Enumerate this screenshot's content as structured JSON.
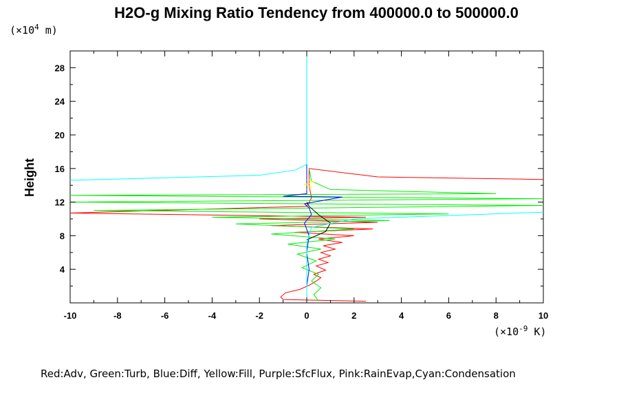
{
  "chart_data": {
    "type": "line",
    "title": "H2O-g Mixing Ratio Tendency from 400000.0 to 500000.0",
    "ylabel": "Height",
    "y_unit_prefix": "(×10",
    "y_unit_exp": "4",
    "y_unit_suffix": " m)",
    "x_unit_prefix": "(×10",
    "x_unit_exp": "-9",
    "x_unit_suffix": " K)",
    "xlim": [
      -10,
      10
    ],
    "ylim": [
      0,
      30
    ],
    "x_ticks": [
      -10,
      -8,
      -6,
      -4,
      -2,
      0,
      2,
      4,
      6,
      8,
      10
    ],
    "y_ticks": [
      4,
      8,
      12,
      16,
      20,
      24,
      28
    ],
    "legend_text": "Red:Adv, Green:Turb, Blue:Diff, Yellow:Fill, Purple:SfcFlux, Pink:RainEvap,Cyan:Condensation",
    "series": [
      {
        "color": "#ff0000",
        "points": [
          [
            2.5,
            0.2
          ],
          [
            0.5,
            0.3
          ],
          [
            -1.0,
            0.4
          ],
          [
            -1.1,
            0.7
          ],
          [
            -0.9,
            1.2
          ],
          [
            -0.3,
            1.6
          ],
          [
            0.1,
            2.1
          ],
          [
            0.4,
            2.6
          ],
          [
            0.6,
            3.0
          ],
          [
            0.3,
            3.4
          ],
          [
            0.8,
            3.9
          ],
          [
            0.4,
            4.4
          ],
          [
            0.9,
            4.8
          ],
          [
            0.5,
            5.2
          ],
          [
            1.0,
            5.6
          ],
          [
            0.6,
            6.0
          ],
          [
            1.2,
            6.4
          ],
          [
            0.7,
            6.8
          ],
          [
            1.5,
            7.2
          ],
          [
            0.5,
            7.6
          ],
          [
            2.0,
            8.0
          ],
          [
            -0.5,
            8.4
          ],
          [
            2.8,
            8.8
          ],
          [
            -1.5,
            9.2
          ],
          [
            3.0,
            9.6
          ],
          [
            -2.0,
            10.0
          ],
          [
            2.5,
            10.2
          ],
          [
            -5.0,
            10.5
          ],
          [
            -10.0,
            10.7
          ],
          [
            0,
            11.5
          ],
          [
            0.2,
            12.5
          ],
          [
            0.1,
            14.0
          ],
          [
            0.1,
            16.0
          ],
          [
            3.0,
            15.0
          ],
          [
            10.0,
            14.7
          ]
        ]
      },
      {
        "color": "#00ee00",
        "points": [
          [
            0.5,
            0.2
          ],
          [
            0.3,
            1.0
          ],
          [
            0.6,
            1.8
          ],
          [
            0.2,
            2.6
          ],
          [
            0.5,
            3.4
          ],
          [
            -0.2,
            4.2
          ],
          [
            0.4,
            5.0
          ],
          [
            -0.4,
            5.8
          ],
          [
            0.6,
            6.4
          ],
          [
            -0.8,
            7.0
          ],
          [
            1.2,
            7.6
          ],
          [
            -1.5,
            8.2
          ],
          [
            2.0,
            8.8
          ],
          [
            -3.0,
            9.4
          ],
          [
            3.5,
            9.8
          ],
          [
            -4.0,
            10.2
          ],
          [
            6.0,
            10.6
          ],
          [
            -9.0,
            11.0
          ],
          [
            10.0,
            11.6
          ],
          [
            -10.0,
            12.0
          ],
          [
            10.0,
            12.4
          ],
          [
            -10.0,
            12.8
          ],
          [
            8.0,
            13.0
          ],
          [
            1.0,
            13.5
          ],
          [
            0.2,
            14.5
          ],
          [
            0.1,
            16.0
          ]
        ]
      },
      {
        "color": "#0000ff",
        "points": [
          [
            0,
            0.2
          ],
          [
            0,
            2.0
          ],
          [
            0.1,
            4.0
          ],
          [
            0,
            6.0
          ],
          [
            0.1,
            8.0
          ],
          [
            -0.1,
            9.5
          ],
          [
            0.2,
            10.5
          ],
          [
            0.1,
            11.3
          ],
          [
            -0.1,
            11.8
          ],
          [
            1.5,
            12.6
          ],
          [
            -1.0,
            12.7
          ],
          [
            0,
            13.0
          ],
          [
            0,
            30.0
          ]
        ]
      },
      {
        "color": "#ffff00",
        "points": [
          [
            0,
            13.5
          ],
          [
            0.2,
            13.8
          ],
          [
            -0.1,
            14.1
          ],
          [
            0.3,
            14.4
          ],
          [
            0,
            14.7
          ]
        ]
      },
      {
        "color": "#000000",
        "points": [
          [
            0,
            7.5
          ],
          [
            0.8,
            8.5
          ],
          [
            1.0,
            9.5
          ],
          [
            0.5,
            10.5
          ],
          [
            0.1,
            11.5
          ],
          [
            0,
            12.0
          ]
        ]
      },
      {
        "color": "#00ffff",
        "points": [
          [
            -10.0,
            14.6
          ],
          [
            -2.0,
            15.2
          ],
          [
            -0.5,
            15.8
          ],
          [
            0,
            16.5
          ],
          [
            0,
            30.0
          ]
        ]
      },
      {
        "color": "#00ffff",
        "points": [
          [
            0,
            0
          ],
          [
            0,
            7.0
          ],
          [
            0.2,
            9.0
          ],
          [
            2.0,
            10.0
          ],
          [
            10.0,
            10.8
          ]
        ]
      }
    ]
  }
}
